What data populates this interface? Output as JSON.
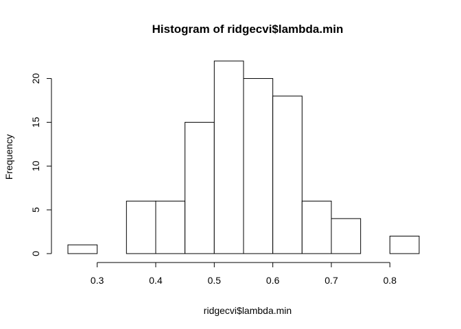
{
  "chart_data": {
    "type": "bar",
    "title": "Histogram of ridgecvi$lambda.min",
    "xlabel": "ridgecvi$lambda.min",
    "ylabel": "Frequency",
    "bins": [
      {
        "start": 0.25,
        "end": 0.3,
        "count": 1
      },
      {
        "start": 0.3,
        "end": 0.35,
        "count": 0
      },
      {
        "start": 0.35,
        "end": 0.4,
        "count": 6
      },
      {
        "start": 0.4,
        "end": 0.45,
        "count": 6
      },
      {
        "start": 0.45,
        "end": 0.5,
        "count": 15
      },
      {
        "start": 0.5,
        "end": 0.55,
        "count": 22
      },
      {
        "start": 0.55,
        "end": 0.6,
        "count": 20
      },
      {
        "start": 0.6,
        "end": 0.65,
        "count": 18
      },
      {
        "start": 0.65,
        "end": 0.7,
        "count": 6
      },
      {
        "start": 0.7,
        "end": 0.75,
        "count": 4
      },
      {
        "start": 0.75,
        "end": 0.8,
        "count": 0
      },
      {
        "start": 0.8,
        "end": 0.85,
        "count": 2
      }
    ],
    "xticks": [
      0.3,
      0.4,
      0.5,
      0.6,
      0.7,
      0.8
    ],
    "xtick_labels": [
      "0.3",
      "0.4",
      "0.5",
      "0.6",
      "0.7",
      "0.8"
    ],
    "yticks": [
      0,
      5,
      10,
      15,
      20
    ],
    "ytick_labels": [
      "0",
      "5",
      "10",
      "15",
      "20"
    ],
    "xlim": [
      0.25,
      0.85
    ],
    "ylim": [
      0,
      22
    ],
    "grid": false,
    "bar_fill": "#ffffff",
    "bar_stroke": "#000000"
  }
}
